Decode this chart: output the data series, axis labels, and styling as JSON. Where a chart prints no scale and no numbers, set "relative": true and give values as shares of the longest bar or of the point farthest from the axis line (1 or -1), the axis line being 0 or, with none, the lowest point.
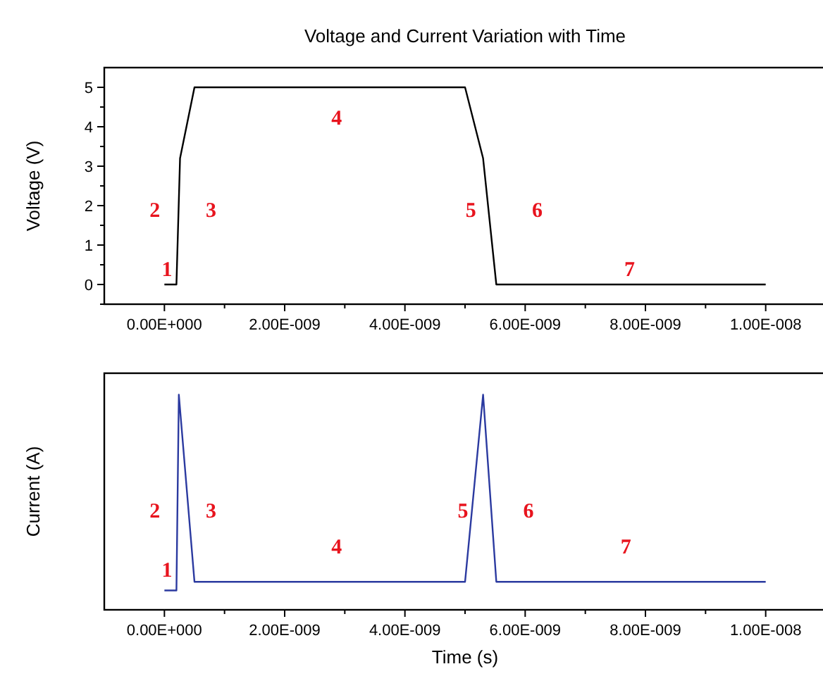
{
  "chart_data": [
    {
      "type": "line",
      "title": "Voltage and Current Variation with Time",
      "ylabel": "Voltage (V)",
      "x": [
        0,
        2e-10,
        2.6e-10,
        5e-10,
        5e-09,
        5.3e-09,
        5.52e-09,
        1e-08
      ],
      "series": [
        {
          "color": "#000000",
          "values": [
            0,
            0,
            3.2,
            5,
            5,
            3.2,
            0,
            0
          ]
        }
      ],
      "xlim": [
        -1e-09,
        1.1e-08
      ],
      "xticks": [
        {
          "value": 0,
          "label": "0.00E+000"
        },
        {
          "value": 1e-09,
          "label": null
        },
        {
          "value": 2e-09,
          "label": "2.00E-009"
        },
        {
          "value": 3e-09,
          "label": null
        },
        {
          "value": 4e-09,
          "label": "4.00E-009"
        },
        {
          "value": 5e-09,
          "label": null
        },
        {
          "value": 6e-09,
          "label": "6.00E-009"
        },
        {
          "value": 7e-09,
          "label": null
        },
        {
          "value": 8e-09,
          "label": "8.00E-009"
        },
        {
          "value": 9e-09,
          "label": null
        },
        {
          "value": 1e-08,
          "label": "1.00E-008"
        }
      ],
      "ylim": [
        -0.5,
        5.5
      ],
      "yticks": [
        {
          "value": -0.5,
          "label": null
        },
        0,
        {
          "value": 0.5,
          "label": null
        },
        1,
        {
          "value": 1.5,
          "label": null
        },
        2,
        {
          "value": 2.5,
          "label": null
        },
        3,
        {
          "value": 3.5,
          "label": null
        },
        4,
        {
          "value": 4.5,
          "label": null
        },
        5
      ],
      "annotations": [
        "1",
        "2",
        "3",
        "4",
        "5",
        "6",
        "7"
      ]
    },
    {
      "type": "line",
      "xlabel": "Time (s)",
      "ylabel": "Current (A)",
      "relative": true,
      "tick_labels": "x",
      "x": [
        0,
        2e-10,
        2.4e-10,
        5e-10,
        5e-09,
        5.3e-09,
        5.52e-09,
        1e-08
      ],
      "series": [
        {
          "color": "#2b3aa0",
          "values": [
            0.09,
            0.09,
            1,
            0.13,
            0.13,
            1,
            0.13,
            0.13
          ]
        }
      ],
      "xlim": [
        -1e-09,
        1.1e-08
      ],
      "xticks": [
        {
          "value": 0,
          "label": "0.00E+000"
        },
        {
          "value": 1e-09,
          "label": null
        },
        {
          "value": 2e-09,
          "label": "2.00E-009"
        },
        {
          "value": 3e-09,
          "label": null
        },
        {
          "value": 4e-09,
          "label": "4.00E-009"
        },
        {
          "value": 5e-09,
          "label": null
        },
        {
          "value": 6e-09,
          "label": "6.00E-009"
        },
        {
          "value": 7e-09,
          "label": null
        },
        {
          "value": 8e-09,
          "label": "8.00E-009"
        },
        {
          "value": 9e-09,
          "label": null
        },
        {
          "value": 1e-08,
          "label": "1.00E-008"
        }
      ],
      "annotations": [
        "1",
        "2",
        "3",
        "4",
        "5",
        "6",
        "7"
      ]
    }
  ]
}
